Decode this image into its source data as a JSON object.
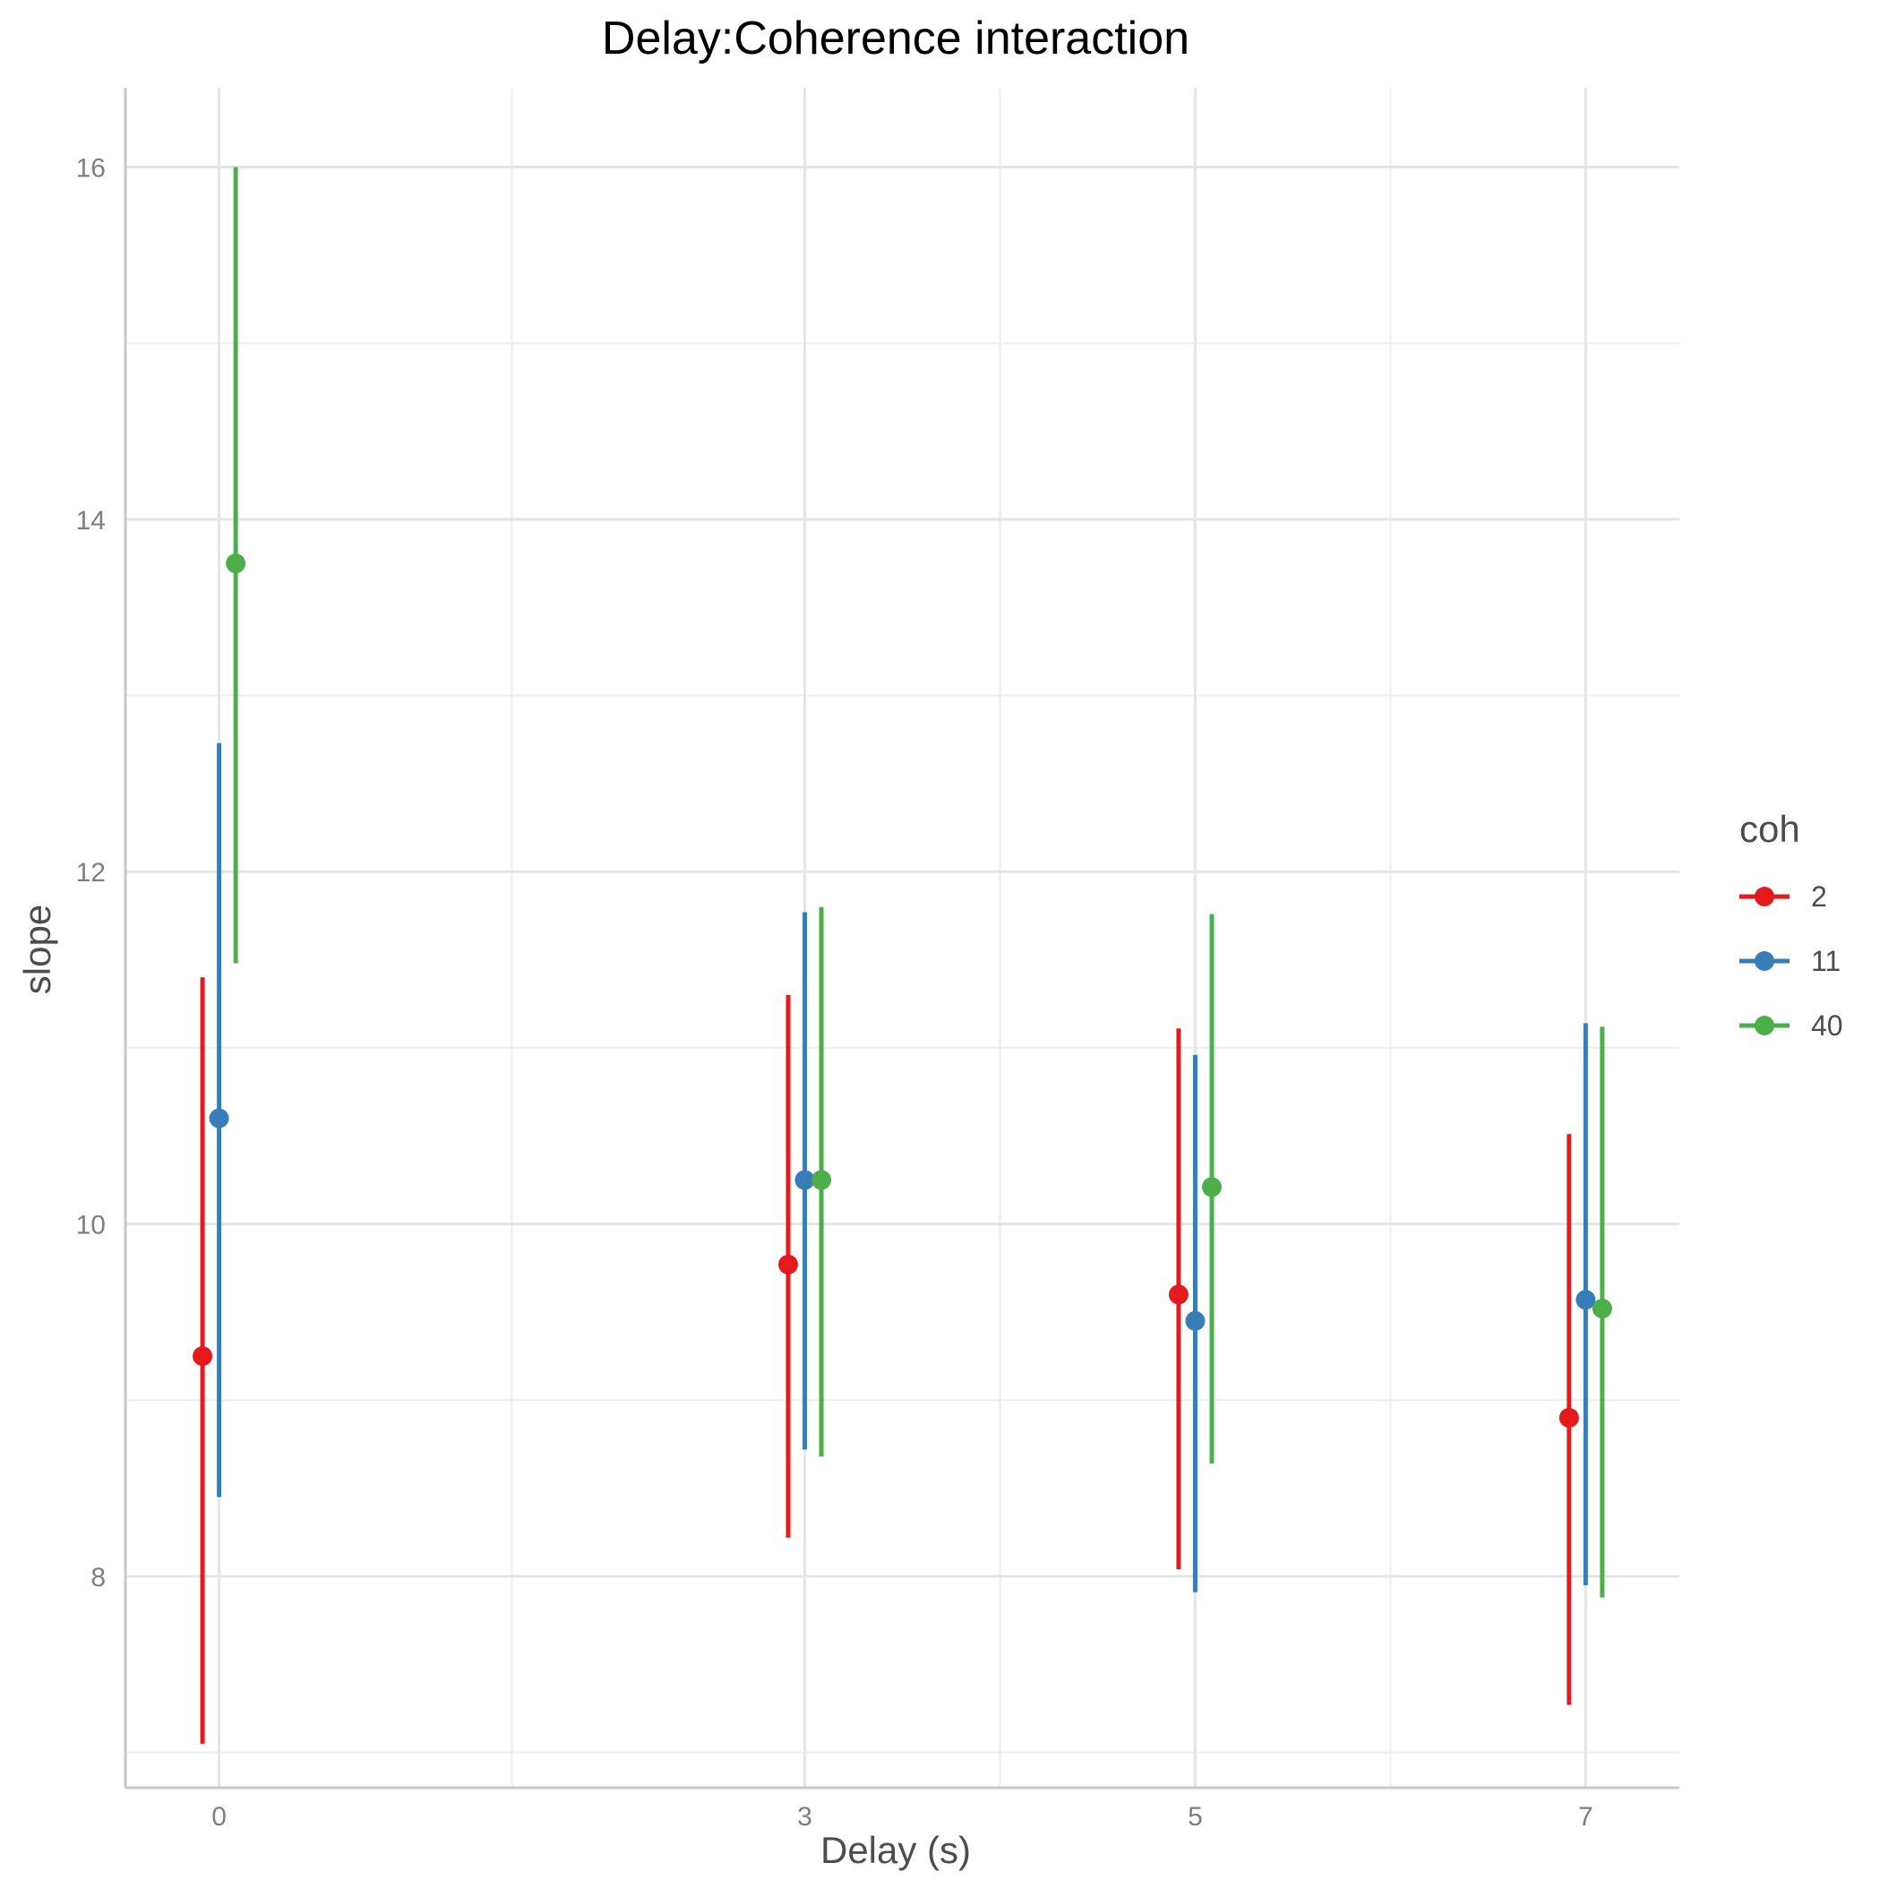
{
  "chart_data": {
    "type": "scatter",
    "subtype": "pointrange",
    "title": "Delay:Coherence interaction",
    "xlabel": "Delay (s)",
    "ylabel": "slope",
    "x_ticks": [
      0,
      3,
      5,
      7
    ],
    "y_ticks": [
      8,
      10,
      12,
      14,
      16
    ],
    "xlim": [
      -0.48,
      7.48
    ],
    "ylim": [
      6.8,
      16.45
    ],
    "grid": true,
    "legend": {
      "title": "coh",
      "placement": "right"
    },
    "series": [
      {
        "name": "2",
        "color": "#e41a1c",
        "points": [
          {
            "x": 0,
            "y": 9.25,
            "ymin": 7.05,
            "ymax": 11.4
          },
          {
            "x": 3,
            "y": 9.77,
            "ymin": 8.22,
            "ymax": 11.3
          },
          {
            "x": 5,
            "y": 9.6,
            "ymin": 8.04,
            "ymax": 11.11
          },
          {
            "x": 7,
            "y": 8.9,
            "ymin": 7.27,
            "ymax": 10.51
          }
        ]
      },
      {
        "name": "11",
        "color": "#377eb8",
        "points": [
          {
            "x": 0,
            "y": 10.6,
            "ymin": 8.45,
            "ymax": 12.73
          },
          {
            "x": 3,
            "y": 10.25,
            "ymin": 8.72,
            "ymax": 11.77
          },
          {
            "x": 5,
            "y": 9.45,
            "ymin": 7.91,
            "ymax": 10.96
          },
          {
            "x": 7,
            "y": 9.57,
            "ymin": 7.95,
            "ymax": 11.14
          }
        ]
      },
      {
        "name": "40",
        "color": "#4daf4a",
        "points": [
          {
            "x": 0,
            "y": 13.75,
            "ymin": 11.48,
            "ymax": 16.0
          },
          {
            "x": 3,
            "y": 10.25,
            "ymin": 8.68,
            "ymax": 11.8
          },
          {
            "x": 5,
            "y": 10.21,
            "ymin": 8.64,
            "ymax": 11.76
          },
          {
            "x": 7,
            "y": 9.52,
            "ymin": 7.88,
            "ymax": 11.12
          }
        ]
      }
    ]
  }
}
